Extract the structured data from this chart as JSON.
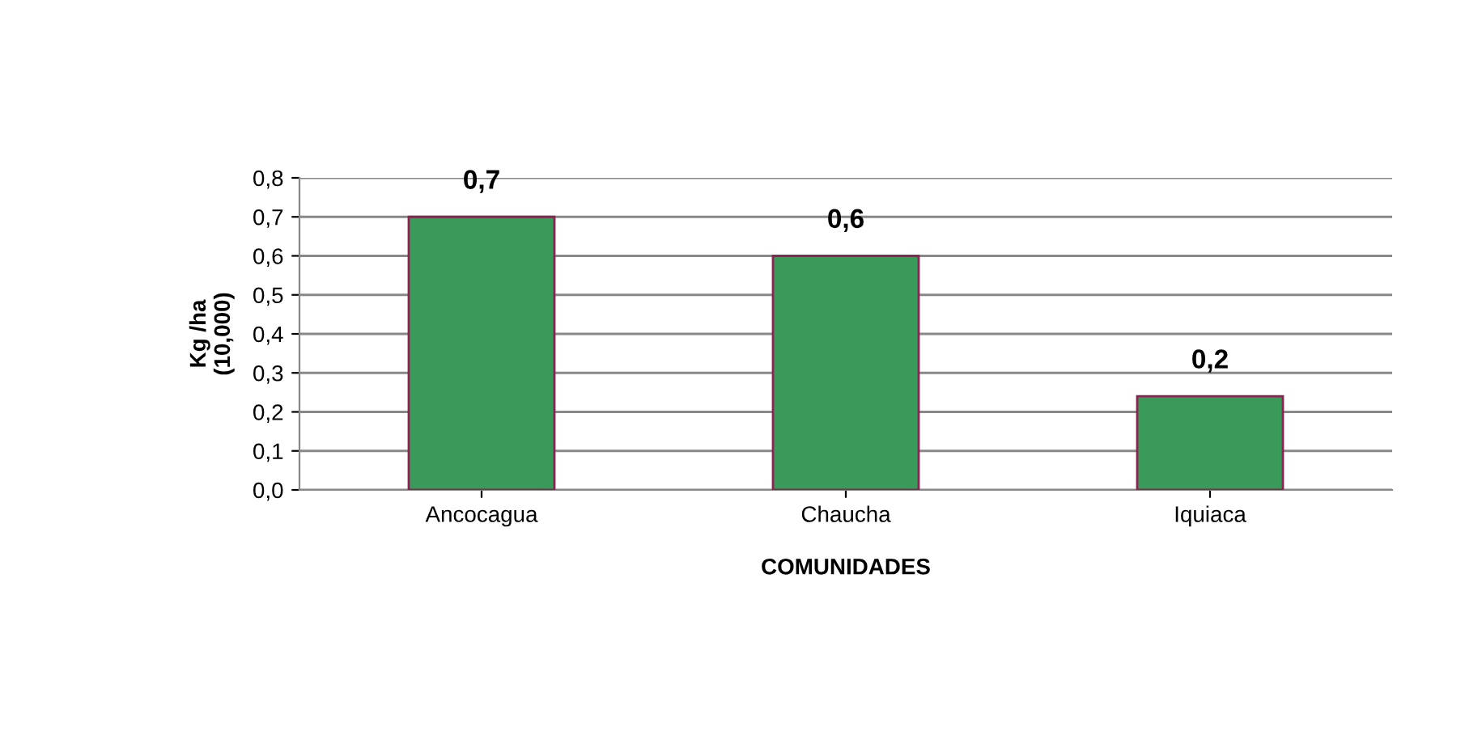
{
  "chart_data": {
    "type": "bar",
    "xlabel": "COMUNIDADES",
    "ylabel": "Kg /ha\n(10,000)",
    "categories": [
      "Ancocagua",
      "Chaucha",
      "Iquiaca"
    ],
    "values": [
      0.7,
      0.6,
      0.24
    ],
    "value_labels": [
      "0,7",
      "0,6",
      "0,2"
    ],
    "color": "#3a9a5a",
    "ylim": [
      0,
      0.8
    ],
    "yticks": [
      {
        "value": 0,
        "label": "0,0"
      },
      {
        "value": 0.1,
        "label": "0,1"
      },
      {
        "value": 0.2,
        "label": "0,2"
      },
      {
        "value": 0.3,
        "label": "0,3"
      },
      {
        "value": 0.4,
        "label": "0,4"
      },
      {
        "value": 0.5,
        "label": "0,5"
      },
      {
        "value": 0.6,
        "label": "0,6"
      },
      {
        "value": 0.7,
        "label": "0,7"
      },
      {
        "value": 0.8,
        "label": "0,8"
      }
    ],
    "grid": "y"
  }
}
